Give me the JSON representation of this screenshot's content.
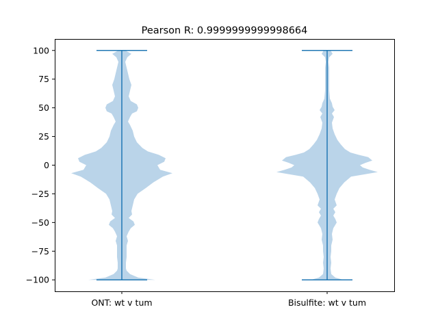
{
  "chart_data": {
    "type": "violin",
    "title": "Pearson R: 0.9999999999998664",
    "xlabel": "",
    "ylabel": "",
    "categories": [
      "ONT: wt v tum",
      "Bisulfite: wt v tum"
    ],
    "ylim": [
      -110,
      110
    ],
    "yticks": [
      -100,
      -75,
      -50,
      -25,
      0,
      25,
      50,
      75,
      100
    ],
    "ytick_labels": [
      "−100",
      "−75",
      "−50",
      "−25",
      "0",
      "25",
      "50",
      "75",
      "100"
    ],
    "grid": false,
    "colors": {
      "violin_fill": "#a9c9e3",
      "lines": "#1f77b4"
    },
    "violins": [
      {
        "name": "ONT: wt v tum",
        "min": -100,
        "max": 100,
        "density_profile": [
          [
            -100,
            49
          ],
          [
            -98,
            24
          ],
          [
            -95,
            12
          ],
          [
            -92,
            7
          ],
          [
            -90,
            6
          ],
          [
            -85,
            6
          ],
          [
            -80,
            7
          ],
          [
            -75,
            7
          ],
          [
            -70,
            7
          ],
          [
            -66,
            9
          ],
          [
            -62,
            7
          ],
          [
            -58,
            10
          ],
          [
            -55,
            13
          ],
          [
            -52,
            19
          ],
          [
            -49,
            17
          ],
          [
            -46,
            10
          ],
          [
            -43,
            15
          ],
          [
            -40,
            14
          ],
          [
            -35,
            16
          ],
          [
            -30,
            18
          ],
          [
            -25,
            23
          ],
          [
            -20,
            35
          ],
          [
            -15,
            46
          ],
          [
            -10,
            60
          ],
          [
            -7,
            74
          ],
          [
            -4,
            56
          ],
          [
            0,
            52
          ],
          [
            3,
            62
          ],
          [
            6,
            64
          ],
          [
            9,
            54
          ],
          [
            12,
            38
          ],
          [
            15,
            30
          ],
          [
            20,
            22
          ],
          [
            25,
            18
          ],
          [
            30,
            16
          ],
          [
            35,
            12
          ],
          [
            38,
            9
          ],
          [
            42,
            12
          ],
          [
            45,
            15
          ],
          [
            47,
            22
          ],
          [
            50,
            24
          ],
          [
            53,
            22
          ],
          [
            56,
            13
          ],
          [
            60,
            10
          ],
          [
            65,
            12
          ],
          [
            70,
            14
          ],
          [
            75,
            11
          ],
          [
            80,
            9
          ],
          [
            85,
            7
          ],
          [
            90,
            5
          ],
          [
            94,
            8
          ],
          [
            97,
            14
          ],
          [
            100,
            5
          ]
        ]
      },
      {
        "name": "Bisulfite: wt v tum",
        "min": -100,
        "max": 100,
        "density_profile": [
          [
            -100,
            24
          ],
          [
            -98,
            12
          ],
          [
            -95,
            6
          ],
          [
            -90,
            5
          ],
          [
            -85,
            6
          ],
          [
            -80,
            5
          ],
          [
            -75,
            6
          ],
          [
            -70,
            6
          ],
          [
            -65,
            8
          ],
          [
            -60,
            7
          ],
          [
            -55,
            9
          ],
          [
            -50,
            14
          ],
          [
            -47,
            12
          ],
          [
            -44,
            9
          ],
          [
            -41,
            12
          ],
          [
            -38,
            9
          ],
          [
            -35,
            14
          ],
          [
            -30,
            11
          ],
          [
            -25,
            14
          ],
          [
            -20,
            18
          ],
          [
            -15,
            25
          ],
          [
            -10,
            35
          ],
          [
            -8,
            55
          ],
          [
            -6,
            74
          ],
          [
            -4,
            62
          ],
          [
            -2,
            52
          ],
          [
            0,
            48
          ],
          [
            2,
            56
          ],
          [
            4,
            66
          ],
          [
            7,
            60
          ],
          [
            9,
            46
          ],
          [
            11,
            34
          ],
          [
            14,
            26
          ],
          [
            18,
            20
          ],
          [
            22,
            15
          ],
          [
            27,
            11
          ],
          [
            32,
            8
          ],
          [
            37,
            7
          ],
          [
            42,
            10
          ],
          [
            45,
            7
          ],
          [
            48,
            11
          ],
          [
            51,
            8
          ],
          [
            54,
            7
          ],
          [
            58,
            4
          ],
          [
            65,
            3
          ],
          [
            75,
            3
          ],
          [
            85,
            3
          ],
          [
            90,
            2
          ],
          [
            94,
            3
          ],
          [
            97,
            8
          ],
          [
            100,
            5
          ]
        ]
      }
    ]
  }
}
